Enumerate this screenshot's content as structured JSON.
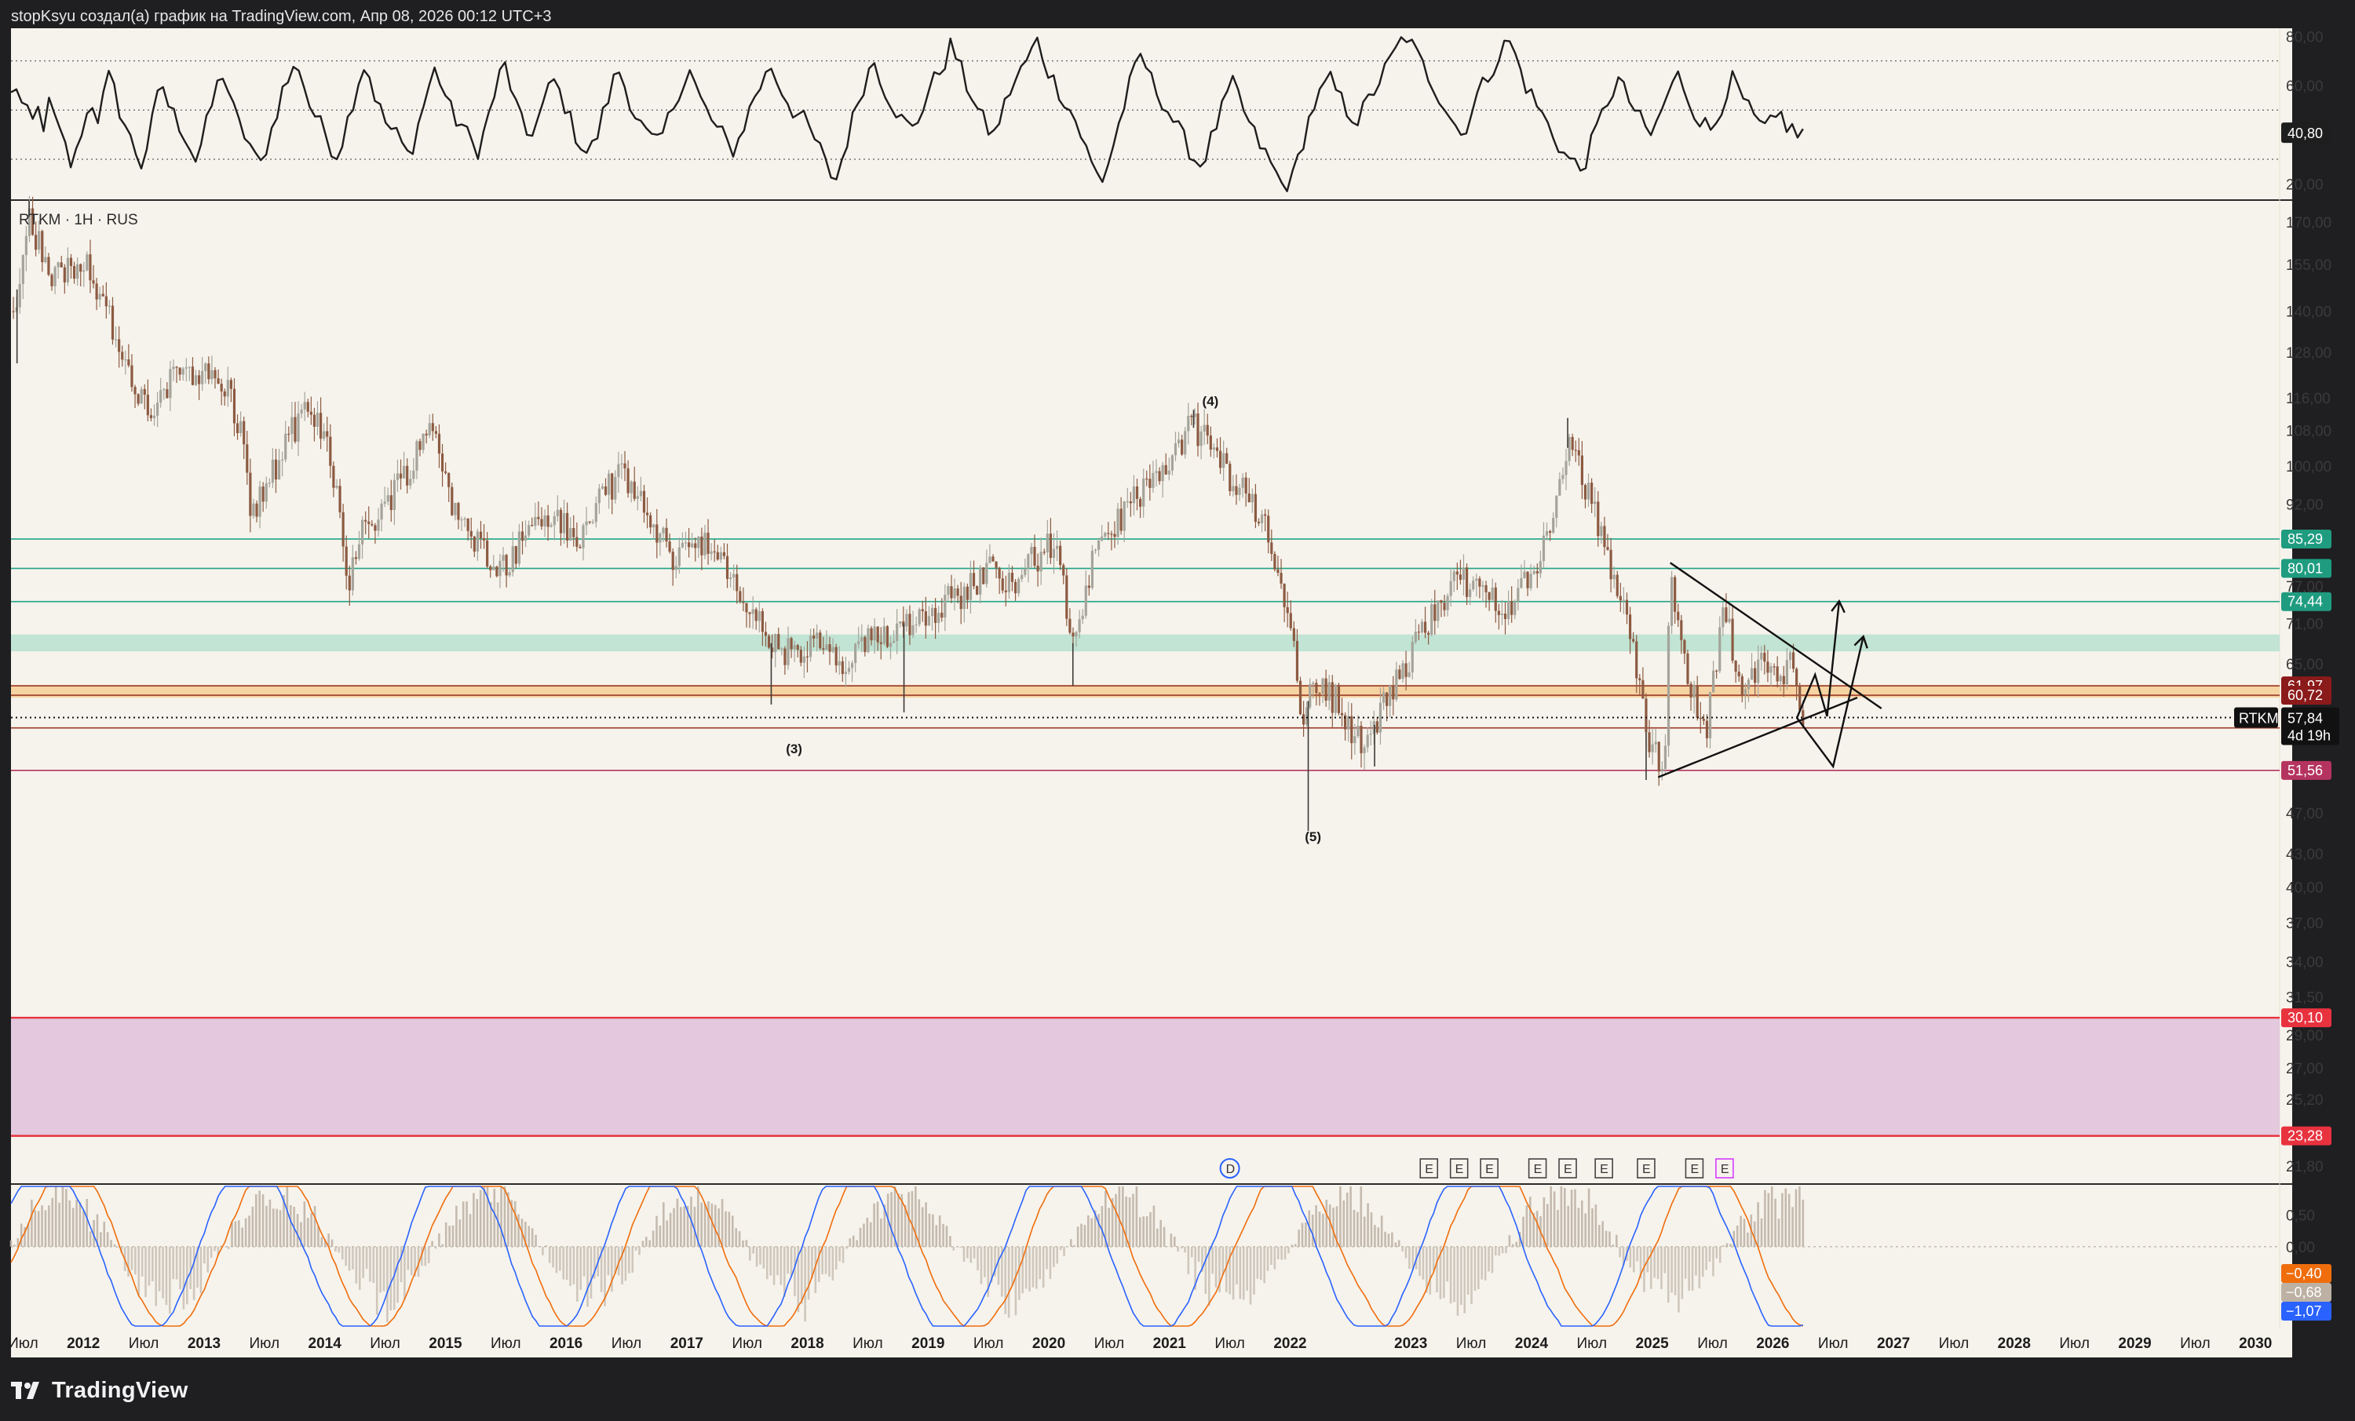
{
  "header": {
    "caption": "stopKsyu создал(а) график на TradingView.com, Апр 08, 2026 00:12 UTC+3"
  },
  "footer": {
    "brand": "TradingView"
  },
  "colors": {
    "background": "#f6f3ec",
    "candle_up": "#a4a49a",
    "candle_down": "#8c5a42",
    "green_line": "#21a386",
    "green_zone": "#b7e0d0",
    "orange_zone": "#f6d3a2",
    "red_line": "#e8323e",
    "pink_zone": "#e3c8de",
    "dark_red_tag": "#8b1a1a",
    "green_tag": "#1f9c80",
    "crimson_line": "#b5345f"
  },
  "chart_data": [
    {
      "panel": "rsi",
      "type": "line",
      "ylim": [
        15,
        82
      ],
      "y_ticks": [
        "80,00",
        "60,00",
        "40,80",
        "20,00"
      ],
      "last_value": "40,80",
      "last_value_num": 40.8,
      "bands": [
        30,
        50,
        70
      ],
      "x_range": [
        2011.4,
        2026.25
      ],
      "values": [
        56,
        60,
        52,
        48,
        45,
        50,
        44,
        52,
        47,
        40,
        35,
        28,
        32,
        42,
        48,
        53,
        47,
        55,
        63,
        58,
        50,
        44,
        38,
        33,
        28,
        35,
        45,
        55,
        60,
        52,
        48,
        44,
        40,
        35,
        30,
        36,
        44,
        52,
        60,
        65,
        58,
        50,
        44,
        40,
        36,
        30,
        28,
        35,
        42,
        50,
        58,
        62,
        66,
        68,
        60,
        52,
        48,
        44,
        40,
        35,
        32,
        38,
        46,
        54,
        62,
        68,
        64,
        56,
        50,
        45,
        42,
        40,
        36,
        32,
        36,
        44,
        52,
        60,
        66,
        62,
        56,
        50,
        46,
        44,
        40,
        36,
        34,
        40,
        48,
        56,
        64,
        68,
        60,
        52,
        45,
        40,
        42,
        46,
        52,
        58,
        62,
        57,
        52,
        46,
        40,
        36,
        33,
        35,
        40,
        48,
        55,
        62,
        66,
        60,
        54,
        48,
        44,
        40,
        38,
        36,
        40,
        46,
        52,
        58,
        62,
        66,
        60,
        54,
        50,
        46,
        42,
        40,
        36,
        34,
        38,
        44,
        50,
        56,
        60,
        64,
        68,
        62,
        58,
        54,
        50,
        48,
        46,
        42,
        38,
        34,
        28,
        24,
        22,
        30,
        38,
        46,
        54,
        60,
        66,
        70,
        64,
        58,
        54,
        50,
        46,
        44,
        42,
        46,
        52,
        58,
        62,
        66,
        70,
        76,
        72,
        66,
        60,
        56,
        50,
        46,
        42,
        40,
        46,
        52,
        58,
        62,
        66,
        70,
        74,
        78,
        72,
        66,
        62,
        58,
        54,
        50,
        46,
        40,
        34,
        28,
        24,
        22,
        28,
        36,
        44,
        52,
        60,
        66,
        72,
        68,
        62,
        58,
        54,
        50,
        46,
        42,
        38,
        34,
        30,
        28,
        32,
        38,
        44,
        50,
        56,
        60,
        56,
        50,
        44,
        40,
        36,
        32,
        28,
        24,
        20,
        18,
        22,
        30,
        38,
        46,
        52,
        56,
        60,
        62,
        58,
        54,
        50,
        48,
        46,
        50,
        54,
        58,
        62,
        66,
        70,
        74,
        78,
        80,
        76,
        72,
        68,
        64,
        60,
        56,
        52,
        48,
        44,
        40,
        44,
        50,
        56,
        60,
        64,
        68,
        72,
        76,
        78,
        72,
        66,
        60,
        56,
        52,
        48,
        44,
        40,
        36,
        32,
        30,
        28,
        26,
        30,
        36,
        42,
        48,
        54,
        58,
        62,
        58,
        54,
        50,
        46,
        42,
        40,
        44,
        50,
        56,
        60,
        64,
        60,
        54,
        50,
        46,
        44,
        42,
        46,
        52,
        58,
        62,
        58,
        54,
        50,
        46,
        44,
        42,
        44,
        46,
        48,
        44,
        42,
        40,
        41
      ],
      "values_note_unit": "RSI"
    },
    {
      "panel": "price",
      "type": "candlestick",
      "symbol_label": "RTKM · 1Н · RUS",
      "scale": "log",
      "ylim": [
        21.0,
        178.0
      ],
      "y_ticks": [
        "170,00",
        "155,00",
        "140,00",
        "128,00",
        "116,00",
        "108,00",
        "100,00",
        "92,00",
        "77,00",
        "71,00",
        "65,00",
        "47,00",
        "43,00",
        "40,00",
        "37,00",
        "34,00",
        "31,50",
        "29,00",
        "27,00",
        "25,20",
        "21,80"
      ],
      "y_ticks_num": [
        170,
        155,
        140,
        128,
        116,
        108,
        100,
        92,
        77,
        71,
        65,
        47,
        43,
        40,
        37,
        34,
        31.5,
        29,
        27,
        25.2,
        21.8
      ],
      "x_ticks": [
        "Июл",
        "2012",
        "Июл",
        "2013",
        "Июл",
        "2014",
        "Июл",
        "2015",
        "Июл",
        "2016",
        "Июл",
        "2017",
        "Июл",
        "2018",
        "Июл",
        "2019",
        "Июл",
        "2020",
        "Июл",
        "2021",
        "Июл",
        "2022",
        "2023",
        "Июл",
        "2024",
        "Июл",
        "2025",
        "Июл",
        "2026",
        "Июл",
        "2027",
        "Июл",
        "2028",
        "Июл",
        "2029",
        "Июл",
        "2030"
      ],
      "x_ticks_num": [
        2011.5,
        2012,
        2012.5,
        2013,
        2013.5,
        2014,
        2014.5,
        2015,
        2015.5,
        2016,
        2016.5,
        2017,
        2017.5,
        2018,
        2018.5,
        2019,
        2019.5,
        2020,
        2020.5,
        2021,
        2021.5,
        2022,
        2023,
        2023.5,
        2024,
        2024.5,
        2025,
        2025.5,
        2026,
        2026.5,
        2027,
        2027.5,
        2028,
        2028.5,
        2029,
        2029.5,
        2030
      ],
      "x_range": [
        2011.4,
        2030.2
      ],
      "series_anchors": [
        [
          2011.42,
          140
        ],
        [
          2011.55,
          172
        ],
        [
          2011.75,
          150
        ],
        [
          2012.0,
          158
        ],
        [
          2012.2,
          140
        ],
        [
          2012.4,
          118
        ],
        [
          2012.6,
          112
        ],
        [
          2012.8,
          125
        ],
        [
          2013.0,
          122
        ],
        [
          2013.2,
          118
        ],
        [
          2013.3,
          108
        ],
        [
          2013.4,
          90
        ],
        [
          2013.6,
          100
        ],
        [
          2013.8,
          112
        ],
        [
          2014.0,
          108
        ],
        [
          2014.1,
          95
        ],
        [
          2014.2,
          78
        ],
        [
          2014.3,
          86
        ],
        [
          2014.5,
          92
        ],
        [
          2014.7,
          100
        ],
        [
          2014.9,
          110
        ],
        [
          2015.1,
          88
        ],
        [
          2015.3,
          84
        ],
        [
          2015.5,
          80
        ],
        [
          2015.7,
          88
        ],
        [
          2015.9,
          90
        ],
        [
          2016.1,
          84
        ],
        [
          2016.3,
          95
        ],
        [
          2016.5,
          98
        ],
        [
          2016.7,
          88
        ],
        [
          2016.9,
          82
        ],
        [
          2017.1,
          86
        ],
        [
          2017.3,
          80
        ],
        [
          2017.5,
          74
        ],
        [
          2017.7,
          68
        ],
        [
          2017.9,
          66
        ],
        [
          2018.1,
          68
        ],
        [
          2018.3,
          64
        ],
        [
          2018.5,
          68
        ],
        [
          2018.7,
          70
        ],
        [
          2018.9,
          72
        ],
        [
          2019.1,
          74
        ],
        [
          2019.3,
          76
        ],
        [
          2019.5,
          80
        ],
        [
          2019.7,
          78
        ],
        [
          2019.9,
          82
        ],
        [
          2020.05,
          85
        ],
        [
          2020.2,
          68
        ],
        [
          2020.35,
          80
        ],
        [
          2020.6,
          90
        ],
        [
          2020.8,
          96
        ],
        [
          2021.0,
          98
        ],
        [
          2021.15,
          110
        ],
        [
          2021.3,
          106
        ],
        [
          2021.5,
          98
        ],
        [
          2021.7,
          92
        ],
        [
          2021.85,
          84
        ],
        [
          2022.0,
          72
        ],
        [
          2022.1,
          58
        ],
        [
          2022.2,
          62
        ],
        [
          2022.4,
          60
        ],
        [
          2022.6,
          54
        ],
        [
          2022.8,
          60
        ],
        [
          2023.0,
          66
        ],
        [
          2023.2,
          74
        ],
        [
          2023.4,
          78
        ],
        [
          2023.6,
          76
        ],
        [
          2023.8,
          74
        ],
        [
          2024.0,
          78
        ],
        [
          2024.15,
          88
        ],
        [
          2024.3,
          104
        ],
        [
          2024.45,
          96
        ],
        [
          2024.6,
          84
        ],
        [
          2024.8,
          72
        ],
        [
          2024.95,
          56
        ],
        [
          2025.1,
          52
        ],
        [
          2025.15,
          80
        ],
        [
          2025.3,
          62
        ],
        [
          2025.45,
          56
        ],
        [
          2025.6,
          74
        ],
        [
          2025.75,
          60
        ],
        [
          2025.9,
          66
        ],
        [
          2026.05,
          62
        ],
        [
          2026.15,
          68
        ],
        [
          2026.25,
          57.84
        ]
      ],
      "last_price": "57,84",
      "last_price_num": 57.84,
      "countdown": "4d 19h",
      "wave_labels": [
        {
          "text": "(4)",
          "x": 2021.35,
          "y": 114.0
        },
        {
          "text": "(3)",
          "x": 2017.9,
          "y": 53.5
        },
        {
          "text": "(5)",
          "x": 2022.2,
          "y": 44.2
        }
      ],
      "horizontal_levels": [
        {
          "value": 85.29,
          "label": "85,29",
          "kind": "green"
        },
        {
          "value": 80.01,
          "label": "80,01",
          "kind": "green"
        },
        {
          "value": 74.44,
          "label": "74,44",
          "kind": "green"
        },
        {
          "value": 61.97,
          "label": "61,97",
          "kind": "darkred"
        },
        {
          "value": 60.72,
          "label": "60,72",
          "kind": "darkred"
        },
        {
          "value": 56.55,
          "label": "56,55",
          "kind": "darkred"
        },
        {
          "value": 51.56,
          "label": "51,56",
          "kind": "crimson"
        },
        {
          "value": 30.1,
          "label": "30,10",
          "kind": "red"
        },
        {
          "value": 23.28,
          "label": "23,28",
          "kind": "red"
        }
      ],
      "zones": [
        {
          "from": 66.8,
          "to": 69.3,
          "kind": "green"
        },
        {
          "from": 60.4,
          "to": 62.1,
          "kind": "orange"
        },
        {
          "from": 23.28,
          "to": 30.1,
          "kind": "pink"
        }
      ],
      "triangle": {
        "upper": [
          [
            2025.15,
            81.0
          ],
          [
            2026.9,
            59.0
          ]
        ],
        "lower": [
          [
            2025.05,
            50.8
          ],
          [
            2026.7,
            60.4
          ]
        ]
      },
      "projection_paths": [
        [
          [
            2026.2,
            57.8
          ],
          [
            2026.35,
            63.5
          ],
          [
            2026.45,
            58.0
          ],
          [
            2026.55,
            74.5
          ]
        ],
        [
          [
            2026.2,
            57.8
          ],
          [
            2026.5,
            52.0
          ],
          [
            2026.75,
            69.0
          ]
        ]
      ],
      "event_markers": {
        "dividend": {
          "label": "D",
          "x": 2021.5
        },
        "earnings_label": "E",
        "earnings": [
          2023.15,
          2023.4,
          2023.65,
          2024.05,
          2024.3,
          2024.6,
          2024.95,
          2025.35,
          2025.6
        ]
      }
    },
    {
      "panel": "oscillator",
      "type": "histogram",
      "ylim": [
        -1.25,
        0.95
      ],
      "y_ticks": [
        "0,50",
        "0,00"
      ],
      "y_ticks_num": [
        0.5,
        0.0
      ],
      "last_values": [
        {
          "label": "−0,40",
          "value": -0.4,
          "color": "#f06d0c"
        },
        {
          "label": "−0,68",
          "value": -0.68,
          "color": "#bdb1a4"
        },
        {
          "label": "−1,07",
          "value": -1.07,
          "color": "#2962ff"
        }
      ],
      "x_range": [
        2011.4,
        2026.25
      ]
    }
  ]
}
